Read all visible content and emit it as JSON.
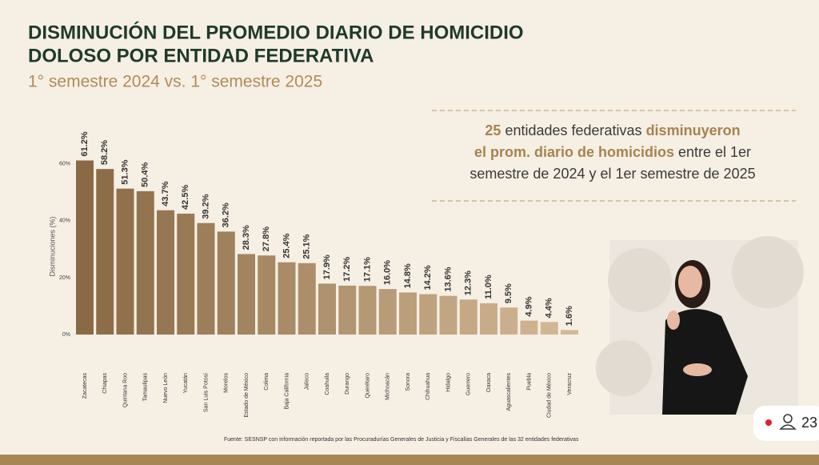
{
  "chart_data": {
    "type": "bar",
    "title_lines": [
      "DISMINUCIÓN DEL PROMEDIO DIARIO DE HOMICIDIO",
      "DOLOSO POR ENTIDAD FEDERATIVA"
    ],
    "subtitle": "1° semestre 2024 vs. 1° semestre 2025",
    "y_label": "Disminuciones (%)",
    "categories": [
      "Zacatecas",
      "Chiapas",
      "Quintana Roo",
      "Tamaulipas",
      "Nuevo León",
      "Yucatán",
      "San Luis Potosí",
      "Morelos",
      "Estado de México",
      "Colima",
      "Baja California",
      "Jalisco",
      "Coahuila",
      "Durango",
      "Querétaro",
      "Michoacán",
      "Sonora",
      "Chihuahua",
      "Hidalgo",
      "Guerrero",
      "Oaxaca",
      "Aguascalientes",
      "Puebla",
      "Ciudad de México",
      "Veracruz"
    ],
    "values": [
      61.2,
      58.2,
      51.3,
      50.4,
      43.7,
      42.5,
      39.2,
      36.2,
      28.3,
      27.8,
      25.4,
      25.1,
      17.9,
      17.2,
      17.1,
      16.0,
      14.8,
      14.2,
      13.6,
      12.3,
      11.0,
      9.5,
      4.9,
      4.4,
      1.6
    ],
    "value_labels": [
      "61.2%",
      "58.2%",
      "51.3%",
      "50.4%",
      "43.7%",
      "42.5%",
      "39.2%",
      "36.2%",
      "28.3%",
      "27.8%",
      "25.4%",
      "25.1%",
      "17.9%",
      "17.2%",
      "17.1%",
      "16.0%",
      "14.8%",
      "14.2%",
      "13.6%",
      "12.3%",
      "11.0%",
      "9.5%",
      "4.9%",
      "4.4%",
      "1.6%"
    ],
    "color_range": [
      "#8a6a45",
      "#d4b996"
    ],
    "ylim": [
      0,
      65
    ],
    "yticks": [
      {
        "value": 0,
        "label": "0%"
      },
      {
        "value": 20,
        "label": "20%"
      },
      {
        "value": 40,
        "label": "40%"
      },
      {
        "value": 60,
        "label": "60%"
      }
    ],
    "source": "Fuente: SESNSP con información reportada por las Procuradurías Generales de Justicia y Fiscalías Generales de las 32 entidades federativas"
  },
  "callout": {
    "lines": [
      [
        {
          "text": "25",
          "bold": true
        },
        {
          "text": " entidades federativas ",
          "bold": false
        },
        {
          "text": "disminuyeron",
          "bold": true
        }
      ],
      [
        {
          "text": "el prom. diario de homicidios",
          "bold": true
        },
        {
          "text": " entre el 1er",
          "bold": false
        }
      ],
      [
        {
          "text": "semestre de 2024 y el 1er semestre de 2025",
          "bold": false
        }
      ]
    ]
  },
  "live_badge": {
    "viewers": "23"
  }
}
